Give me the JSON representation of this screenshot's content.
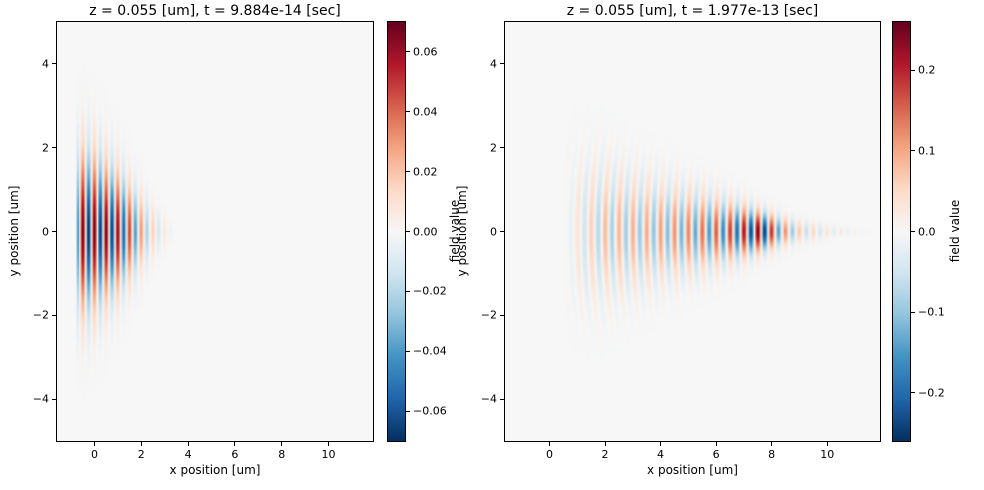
{
  "figure": {
    "background": "#ffffff",
    "text_color": "#000000",
    "colormap_name": "RdBu_r",
    "colormap_stops": [
      "#053061",
      "#2166ac",
      "#4393c3",
      "#92c5de",
      "#d1e5f0",
      "#f7f7f7",
      "#fddbc7",
      "#f4a582",
      "#d6604d",
      "#b2182b",
      "#67001f"
    ]
  },
  "chart_data": [
    {
      "type": "heatmap",
      "title": "z = 0.055 [um], t = 9.884e-14 [sec]",
      "z_um": 0.055,
      "t_sec": 9.884e-14,
      "xlabel": "x position [um]",
      "ylabel": "y position [um]",
      "xlim": [
        -1.6,
        11.9
      ],
      "ylim": [
        -5,
        5
      ],
      "grid": false,
      "xticks": [
        0,
        2,
        4,
        6,
        8,
        10
      ],
      "xtick_labels": [
        "0",
        "2",
        "4",
        "6",
        "8",
        "10"
      ],
      "yticks": [
        -4,
        -2,
        0,
        2,
        4
      ],
      "ytick_labels": [
        "−4",
        "−2",
        "0",
        "2",
        "4"
      ],
      "colorbar": {
        "label": "field value",
        "vmin": -0.07,
        "vmax": 0.07,
        "ticks": [
          0.06,
          0.04,
          0.02,
          0,
          -0.02,
          -0.04,
          -0.06
        ],
        "tick_labels": [
          "0.06",
          "0.04",
          "0.02",
          "0.00",
          "−0.02",
          "−0.04",
          "−0.06"
        ]
      },
      "field_model": {
        "description": "pulsed beam just after launch: vertical red/blue fringes in a wedge tapering from x≈-0.7 (half-height ≈2.4 um) to a point near x≈3.4, centered on y=0",
        "wavelength_um": 0.5,
        "phase_x0": 0,
        "curvature": 0,
        "y_falloff": 1.3,
        "amp_profile": [
          [
            -0.78,
            0
          ],
          [
            -0.72,
            0.055
          ],
          [
            -0.5,
            0.07
          ],
          [
            0.9,
            0.066
          ],
          [
            1.6,
            0.045
          ],
          [
            2.3,
            0.02
          ],
          [
            3.0,
            0.007
          ],
          [
            3.45,
            0
          ]
        ],
        "halfwidth_profile": [
          [
            -0.78,
            2.0
          ],
          [
            0,
            1.85
          ],
          [
            1,
            1.45
          ],
          [
            2,
            0.95
          ],
          [
            3,
            0.4
          ],
          [
            3.5,
            0.06
          ]
        ]
      }
    },
    {
      "type": "heatmap",
      "title": "z = 0.055 [um], t = 1.977e-13 [sec]",
      "z_um": 0.055,
      "t_sec": 1.977e-13,
      "xlabel": "x position [um]",
      "ylabel": "y position [um]",
      "xlim": [
        -1.6,
        11.9
      ],
      "ylim": [
        -5,
        5
      ],
      "grid": false,
      "xticks": [
        0,
        2,
        4,
        6,
        8,
        10
      ],
      "xtick_labels": [
        "0",
        "2",
        "4",
        "6",
        "8",
        "10"
      ],
      "yticks": [
        -4,
        -2,
        0,
        2,
        4
      ],
      "ytick_labels": [
        "−4",
        "−2",
        "0",
        "2",
        "4"
      ],
      "colorbar": {
        "label": "field value",
        "vmin": -0.26,
        "vmax": 0.26,
        "ticks": [
          0.2,
          0.1,
          0,
          -0.1,
          -0.2
        ],
        "tick_labels": [
          "0.2",
          "0.1",
          "0.0",
          "−0.1",
          "−0.2"
        ]
      },
      "field_model": {
        "description": "same pulse after propagation: curved converging fringes in a cone from x≈1 (half-height ≈2 um) narrowing toward x≈11.5, peak field (dark red spot) near x≈7.7, y=0",
        "wavelength_um": 0.5,
        "phase_x0": 0,
        "curvature": -0.045,
        "y_falloff": 1.3,
        "amp_profile": [
          [
            0.5,
            0
          ],
          [
            1.2,
            0.05
          ],
          [
            2.0,
            0.085
          ],
          [
            3.5,
            0.1
          ],
          [
            5.0,
            0.13
          ],
          [
            6.3,
            0.17
          ],
          [
            7.3,
            0.24
          ],
          [
            7.7,
            0.26
          ],
          [
            8.2,
            0.15
          ],
          [
            9.0,
            0.07
          ],
          [
            10.0,
            0.035
          ],
          [
            11.0,
            0.012
          ],
          [
            11.6,
            0
          ]
        ],
        "halfwidth_profile": [
          [
            0.5,
            1.9
          ],
          [
            2,
            1.6
          ],
          [
            4,
            1.2
          ],
          [
            6,
            0.85
          ],
          [
            7.6,
            0.5
          ],
          [
            9,
            0.28
          ],
          [
            10.5,
            0.12
          ],
          [
            11.6,
            0.04
          ]
        ]
      }
    }
  ]
}
